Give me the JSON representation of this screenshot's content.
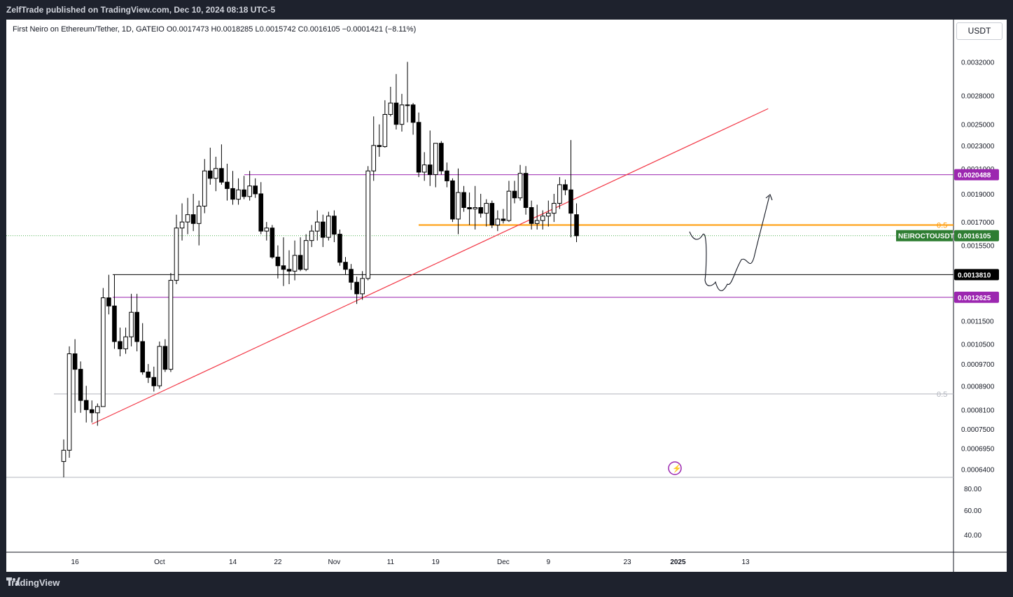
{
  "header": {
    "published": "ZelfTrade published on TradingView.com, Dec 10, 2024 08:18 UTC-5"
  },
  "symbol_line": "First Neiro on Ethereum/Tether, 1D, GATEIO  O0.0017473  H0.0018285  L0.0015742  C0.0016105  −0.0001421 (−8.11%)",
  "currency_button": "USDT",
  "footer_brand": "TradingView",
  "colors": {
    "up": "#ffffff",
    "down": "#000000",
    "trendline": "#f23645",
    "purple": "#9c27b0",
    "orange": "#ff9800",
    "green": "#4caf50"
  },
  "chart_data": {
    "type": "candlestick",
    "scale": "log",
    "ylim": [
      0.00062,
      0.0035
    ],
    "price_ticks": [
      "0.0032000",
      "0.0028000",
      "0.0025000",
      "0.0023000",
      "0.0021000",
      "0.0019000",
      "0.0017000",
      "0.0015500",
      "0.0011500",
      "0.0010500",
      "0.0009700",
      "0.0008900",
      "0.0008100",
      "0.0007500",
      "0.0006950",
      "0.0006400"
    ],
    "time_ticks": [
      "16",
      "Oct",
      "14",
      "22",
      "Nov",
      "11",
      "19",
      "Dec",
      "9",
      "23",
      "2025",
      "13"
    ],
    "time_tick_dates": [
      "2024-09-16",
      "2024-10-01",
      "2024-10-14",
      "2024-10-22",
      "2024-11-01",
      "2024-11-11",
      "2024-11-19",
      "2024-12-01",
      "2024-12-09",
      "2024-12-23",
      "2025-01-01",
      "2025-01-13"
    ],
    "oscillator_ticks": [
      "80.00",
      "60.00",
      "40.00"
    ],
    "candles": [
      {
        "d": "2024-09-14",
        "o": 0.00066,
        "h": 0.00072,
        "l": 0.00062,
        "c": 0.00069
      },
      {
        "d": "2024-09-15",
        "o": 0.00069,
        "h": 0.00104,
        "l": 0.00067,
        "c": 0.00101
      },
      {
        "d": "2024-09-16",
        "o": 0.00101,
        "h": 0.00107,
        "l": 0.0008,
        "c": 0.00095
      },
      {
        "d": "2024-09-17",
        "o": 0.00095,
        "h": 0.00098,
        "l": 0.0008,
        "c": 0.00084
      },
      {
        "d": "2024-09-18",
        "o": 0.00084,
        "h": 0.00089,
        "l": 0.00077,
        "c": 0.00081
      },
      {
        "d": "2024-09-19",
        "o": 0.00081,
        "h": 0.00084,
        "l": 0.00077,
        "c": 0.0008
      },
      {
        "d": "2024-09-20",
        "o": 0.0008,
        "h": 0.00083,
        "l": 0.00076,
        "c": 0.00082
      },
      {
        "d": "2024-09-21",
        "o": 0.00082,
        "h": 0.00131,
        "l": 0.00082,
        "c": 0.00126
      },
      {
        "d": "2024-09-22",
        "o": 0.00126,
        "h": 0.00138,
        "l": 0.00118,
        "c": 0.00122
      },
      {
        "d": "2024-09-23",
        "o": 0.00122,
        "h": 0.00138,
        "l": 0.00103,
        "c": 0.00106
      },
      {
        "d": "2024-09-24",
        "o": 0.00106,
        "h": 0.00112,
        "l": 0.001,
        "c": 0.00103
      },
      {
        "d": "2024-09-25",
        "o": 0.00103,
        "h": 0.00112,
        "l": 0.00101,
        "c": 0.00108
      },
      {
        "d": "2024-09-26",
        "o": 0.00108,
        "h": 0.00128,
        "l": 0.00104,
        "c": 0.00119
      },
      {
        "d": "2024-09-27",
        "o": 0.00119,
        "h": 0.00128,
        "l": 0.00102,
        "c": 0.00106
      },
      {
        "d": "2024-09-28",
        "o": 0.00106,
        "h": 0.00114,
        "l": 0.00093,
        "c": 0.00094
      },
      {
        "d": "2024-09-29",
        "o": 0.00094,
        "h": 0.00097,
        "l": 0.0009,
        "c": 0.00092
      },
      {
        "d": "2024-09-30",
        "o": 0.00092,
        "h": 0.00096,
        "l": 0.00087,
        "c": 0.00089
      },
      {
        "d": "2024-10-01",
        "o": 0.00089,
        "h": 0.00106,
        "l": 0.00088,
        "c": 0.00104
      },
      {
        "d": "2024-10-02",
        "o": 0.00104,
        "h": 0.00107,
        "l": 0.00094,
        "c": 0.00095
      },
      {
        "d": "2024-10-03",
        "o": 0.00095,
        "h": 0.00139,
        "l": 0.00094,
        "c": 0.00135
      },
      {
        "d": "2024-10-04",
        "o": 0.00135,
        "h": 0.00175,
        "l": 0.00133,
        "c": 0.00166
      },
      {
        "d": "2024-10-05",
        "o": 0.00166,
        "h": 0.00183,
        "l": 0.00158,
        "c": 0.0017
      },
      {
        "d": "2024-10-06",
        "o": 0.0017,
        "h": 0.00187,
        "l": 0.00162,
        "c": 0.00175
      },
      {
        "d": "2024-10-07",
        "o": 0.00175,
        "h": 0.0019,
        "l": 0.00164,
        "c": 0.00169
      },
      {
        "d": "2024-10-08",
        "o": 0.00169,
        "h": 0.00185,
        "l": 0.00155,
        "c": 0.00181
      },
      {
        "d": "2024-10-09",
        "o": 0.00181,
        "h": 0.00218,
        "l": 0.00176,
        "c": 0.00208
      },
      {
        "d": "2024-10-10",
        "o": 0.00208,
        "h": 0.00228,
        "l": 0.00197,
        "c": 0.00202
      },
      {
        "d": "2024-10-11",
        "o": 0.00202,
        "h": 0.0022,
        "l": 0.00192,
        "c": 0.0021
      },
      {
        "d": "2024-10-12",
        "o": 0.0021,
        "h": 0.00231,
        "l": 0.00197,
        "c": 0.00199
      },
      {
        "d": "2024-10-13",
        "o": 0.00199,
        "h": 0.00214,
        "l": 0.00185,
        "c": 0.00194
      },
      {
        "d": "2024-10-14",
        "o": 0.00194,
        "h": 0.00208,
        "l": 0.00182,
        "c": 0.00186
      },
      {
        "d": "2024-10-15",
        "o": 0.00186,
        "h": 0.00202,
        "l": 0.00182,
        "c": 0.00193
      },
      {
        "d": "2024-10-16",
        "o": 0.00193,
        "h": 0.00204,
        "l": 0.00186,
        "c": 0.00188
      },
      {
        "d": "2024-10-17",
        "o": 0.00188,
        "h": 0.00208,
        "l": 0.00185,
        "c": 0.00196
      },
      {
        "d": "2024-10-18",
        "o": 0.00196,
        "h": 0.00202,
        "l": 0.00187,
        "c": 0.0019
      },
      {
        "d": "2024-10-19",
        "o": 0.0019,
        "h": 0.00199,
        "l": 0.00162,
        "c": 0.00164
      },
      {
        "d": "2024-10-20",
        "o": 0.00164,
        "h": 0.0017,
        "l": 0.00158,
        "c": 0.00166
      },
      {
        "d": "2024-10-21",
        "o": 0.00166,
        "h": 0.00168,
        "l": 0.00147,
        "c": 0.00148
      },
      {
        "d": "2024-10-22",
        "o": 0.00148,
        "h": 0.00155,
        "l": 0.00136,
        "c": 0.00143
      },
      {
        "d": "2024-10-23",
        "o": 0.00143,
        "h": 0.0016,
        "l": 0.00132,
        "c": 0.00141
      },
      {
        "d": "2024-10-24",
        "o": 0.00141,
        "h": 0.00152,
        "l": 0.00133,
        "c": 0.0014
      },
      {
        "d": "2024-10-25",
        "o": 0.0014,
        "h": 0.00158,
        "l": 0.00135,
        "c": 0.00149
      },
      {
        "d": "2024-10-26",
        "o": 0.00149,
        "h": 0.0016,
        "l": 0.0014,
        "c": 0.00141
      },
      {
        "d": "2024-10-27",
        "o": 0.00141,
        "h": 0.00162,
        "l": 0.0014,
        "c": 0.00158
      },
      {
        "d": "2024-10-28",
        "o": 0.00158,
        "h": 0.00168,
        "l": 0.00154,
        "c": 0.00164
      },
      {
        "d": "2024-10-29",
        "o": 0.00164,
        "h": 0.00178,
        "l": 0.00158,
        "c": 0.0017
      },
      {
        "d": "2024-10-30",
        "o": 0.0017,
        "h": 0.00175,
        "l": 0.00154,
        "c": 0.0016
      },
      {
        "d": "2024-10-31",
        "o": 0.0016,
        "h": 0.00177,
        "l": 0.00158,
        "c": 0.00174
      },
      {
        "d": "2024-11-01",
        "o": 0.00174,
        "h": 0.00178,
        "l": 0.00157,
        "c": 0.00162
      },
      {
        "d": "2024-11-02",
        "o": 0.00162,
        "h": 0.00165,
        "l": 0.00143,
        "c": 0.00145
      },
      {
        "d": "2024-11-03",
        "o": 0.00145,
        "h": 0.00148,
        "l": 0.00138,
        "c": 0.00141
      },
      {
        "d": "2024-11-04",
        "o": 0.00141,
        "h": 0.00144,
        "l": 0.0013,
        "c": 0.00134
      },
      {
        "d": "2024-11-05",
        "o": 0.00134,
        "h": 0.00137,
        "l": 0.00123,
        "c": 0.00128
      },
      {
        "d": "2024-11-06",
        "o": 0.00128,
        "h": 0.0014,
        "l": 0.00125,
        "c": 0.00136
      },
      {
        "d": "2024-11-07",
        "o": 0.00136,
        "h": 0.00212,
        "l": 0.00135,
        "c": 0.00208
      },
      {
        "d": "2024-11-08",
        "o": 0.00208,
        "h": 0.00258,
        "l": 0.002,
        "c": 0.0023
      },
      {
        "d": "2024-11-09",
        "o": 0.0023,
        "h": 0.0025,
        "l": 0.0022,
        "c": 0.00229
      },
      {
        "d": "2024-11-10",
        "o": 0.00229,
        "h": 0.00275,
        "l": 0.00228,
        "c": 0.0026
      },
      {
        "d": "2024-11-11",
        "o": 0.0026,
        "h": 0.0029,
        "l": 0.00258,
        "c": 0.00272
      },
      {
        "d": "2024-11-12",
        "o": 0.00272,
        "h": 0.00305,
        "l": 0.00245,
        "c": 0.0025
      },
      {
        "d": "2024-11-13",
        "o": 0.0025,
        "h": 0.00282,
        "l": 0.00243,
        "c": 0.0027
      },
      {
        "d": "2024-11-14",
        "o": 0.0027,
        "h": 0.0032,
        "l": 0.00252,
        "c": 0.0027
      },
      {
        "d": "2024-11-15",
        "o": 0.0027,
        "h": 0.00272,
        "l": 0.0024,
        "c": 0.00252
      },
      {
        "d": "2024-11-16",
        "o": 0.00252,
        "h": 0.00262,
        "l": 0.00203,
        "c": 0.00207
      },
      {
        "d": "2024-11-17",
        "o": 0.00207,
        "h": 0.00224,
        "l": 0.002,
        "c": 0.00213
      },
      {
        "d": "2024-11-18",
        "o": 0.00213,
        "h": 0.00244,
        "l": 0.00196,
        "c": 0.00205
      },
      {
        "d": "2024-11-19",
        "o": 0.00205,
        "h": 0.0023,
        "l": 0.00195,
        "c": 0.00232
      },
      {
        "d": "2024-11-20",
        "o": 0.00232,
        "h": 0.00234,
        "l": 0.00205,
        "c": 0.00208
      },
      {
        "d": "2024-11-21",
        "o": 0.00208,
        "h": 0.00215,
        "l": 0.00195,
        "c": 0.002
      },
      {
        "d": "2024-11-22",
        "o": 0.002,
        "h": 0.00202,
        "l": 0.0017,
        "c": 0.00172
      },
      {
        "d": "2024-11-23",
        "o": 0.00172,
        "h": 0.0021,
        "l": 0.00162,
        "c": 0.00191
      },
      {
        "d": "2024-11-24",
        "o": 0.00191,
        "h": 0.00196,
        "l": 0.00177,
        "c": 0.0018
      },
      {
        "d": "2024-11-25",
        "o": 0.0018,
        "h": 0.00191,
        "l": 0.00168,
        "c": 0.00179
      },
      {
        "d": "2024-11-26",
        "o": 0.00179,
        "h": 0.00196,
        "l": 0.00165,
        "c": 0.0018
      },
      {
        "d": "2024-11-27",
        "o": 0.0018,
        "h": 0.0019,
        "l": 0.00173,
        "c": 0.00176
      },
      {
        "d": "2024-11-28",
        "o": 0.00176,
        "h": 0.00186,
        "l": 0.00167,
        "c": 0.00183
      },
      {
        "d": "2024-11-29",
        "o": 0.00183,
        "h": 0.00185,
        "l": 0.00166,
        "c": 0.00168
      },
      {
        "d": "2024-11-30",
        "o": 0.00168,
        "h": 0.00178,
        "l": 0.00164,
        "c": 0.00172
      },
      {
        "d": "2024-12-01",
        "o": 0.00172,
        "h": 0.00179,
        "l": 0.00169,
        "c": 0.00171
      },
      {
        "d": "2024-12-02",
        "o": 0.00171,
        "h": 0.002,
        "l": 0.0017,
        "c": 0.00192
      },
      {
        "d": "2024-12-03",
        "o": 0.00192,
        "h": 0.002,
        "l": 0.00183,
        "c": 0.00187
      },
      {
        "d": "2024-12-04",
        "o": 0.00187,
        "h": 0.00213,
        "l": 0.00185,
        "c": 0.00206
      },
      {
        "d": "2024-12-05",
        "o": 0.00206,
        "h": 0.00212,
        "l": 0.00175,
        "c": 0.0018
      },
      {
        "d": "2024-12-06",
        "o": 0.0018,
        "h": 0.00185,
        "l": 0.00165,
        "c": 0.00169
      },
      {
        "d": "2024-12-07",
        "o": 0.00169,
        "h": 0.00182,
        "l": 0.00165,
        "c": 0.00171
      },
      {
        "d": "2024-12-08",
        "o": 0.00171,
        "h": 0.00178,
        "l": 0.00165,
        "c": 0.00174
      },
      {
        "d": "2024-12-09",
        "o": 0.00174,
        "h": 0.00185,
        "l": 0.00167,
        "c": 0.00176
      },
      {
        "d": "2024-12-10",
        "o": 0.00176,
        "h": 0.0019,
        "l": 0.0017,
        "c": 0.00183
      },
      {
        "d": "2024-12-11",
        "o": 0.00183,
        "h": 0.00203,
        "l": 0.00179,
        "c": 0.00197
      },
      {
        "d": "2024-12-12",
        "o": 0.00197,
        "h": 0.00201,
        "l": 0.00189,
        "c": 0.00193
      },
      {
        "d": "2024-12-13",
        "o": 0.00193,
        "h": 0.00235,
        "l": 0.0016,
        "c": 0.00176
      },
      {
        "d": "2024-12-14",
        "o": 0.00175,
        "h": 0.00183,
        "l": 0.00157,
        "c": 0.00161
      }
    ],
    "horizontal_lines": [
      {
        "price": 0.0020488,
        "label": "0.0020488",
        "color": "#9c27b0"
      },
      {
        "price": 0.001381,
        "label": "0.0013810",
        "color": "#000000"
      },
      {
        "price": 0.0012625,
        "label": "0.0012625",
        "color": "#9c27b0"
      }
    ],
    "fib_levels": [
      {
        "price": 0.00168,
        "label": "0.5",
        "color": "#ff9800"
      },
      {
        "price": 0.000862,
        "label": "0.5",
        "color": "#b2b5be"
      }
    ],
    "last_price": {
      "symbol": "NEIROCTOUSDT",
      "price": "0.0016105"
    },
    "trendline": {
      "from": {
        "d": "2024-09-19",
        "p": 0.000765
      },
      "to": {
        "d": "2025-01-17",
        "p": 0.00266
      }
    }
  }
}
